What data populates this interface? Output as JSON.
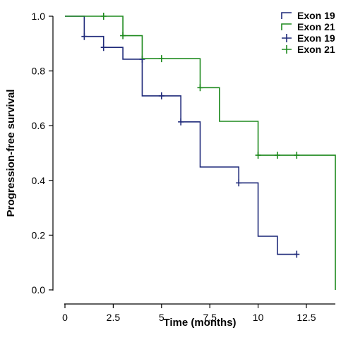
{
  "chart_data": {
    "type": "line",
    "subtype": "kaplan-meier step",
    "xlabel": "Time (months)",
    "ylabel": "Progression-free survival",
    "xlim": [
      0,
      14
    ],
    "ylim": [
      0,
      1
    ],
    "x_ticks": [
      "0",
      "2.5",
      "5",
      "7.5",
      "10",
      "12.5"
    ],
    "x_tick_values": [
      0,
      2.5,
      5,
      7.5,
      10,
      12.5
    ],
    "y_ticks": [
      "0.0",
      "0.2",
      "0.4",
      "0.6",
      "0.8",
      "1.0"
    ],
    "y_tick_values": [
      0,
      0.2,
      0.4,
      0.6,
      0.8,
      1.0
    ],
    "grid": false,
    "legend_position": "top-right",
    "legend": [
      {
        "label": "Exon 19",
        "style": "line",
        "color": "#1f2a7a"
      },
      {
        "label": "Exon 21",
        "style": "line",
        "color": "#1e8a1e"
      },
      {
        "label": "Exon 19",
        "style": "censor",
        "color": "#1f2a7a"
      },
      {
        "label": "Exon 21",
        "style": "censor",
        "color": "#1e8a1e"
      }
    ],
    "series": [
      {
        "name": "Exon 19",
        "color": "#1f2a7a",
        "steps": [
          [
            0,
            1.0
          ],
          [
            1,
            0.926
          ],
          [
            2,
            0.886
          ],
          [
            3,
            0.843
          ],
          [
            4,
            0.709
          ],
          [
            6,
            0.614
          ],
          [
            7,
            0.449
          ],
          [
            9,
            0.391
          ],
          [
            10,
            0.196
          ],
          [
            11,
            0.13
          ],
          [
            12,
            0.13
          ]
        ],
        "censored": [
          [
            1,
            0.926
          ],
          [
            2,
            0.886
          ],
          [
            4,
            0.843
          ],
          [
            5,
            0.709
          ],
          [
            6,
            0.614
          ],
          [
            9,
            0.391
          ],
          [
            12,
            0.13
          ]
        ]
      },
      {
        "name": "Exon 21",
        "color": "#1e8a1e",
        "steps": [
          [
            0,
            1.0
          ],
          [
            3,
            0.929
          ],
          [
            4,
            0.845
          ],
          [
            7,
            0.739
          ],
          [
            8,
            0.616
          ],
          [
            10,
            0.492
          ],
          [
            14,
            0.0
          ]
        ],
        "censored": [
          [
            2,
            1.0
          ],
          [
            3,
            0.929
          ],
          [
            5,
            0.845
          ],
          [
            7,
            0.739
          ],
          [
            10,
            0.492
          ],
          [
            11,
            0.492
          ],
          [
            12,
            0.492
          ]
        ]
      }
    ]
  }
}
